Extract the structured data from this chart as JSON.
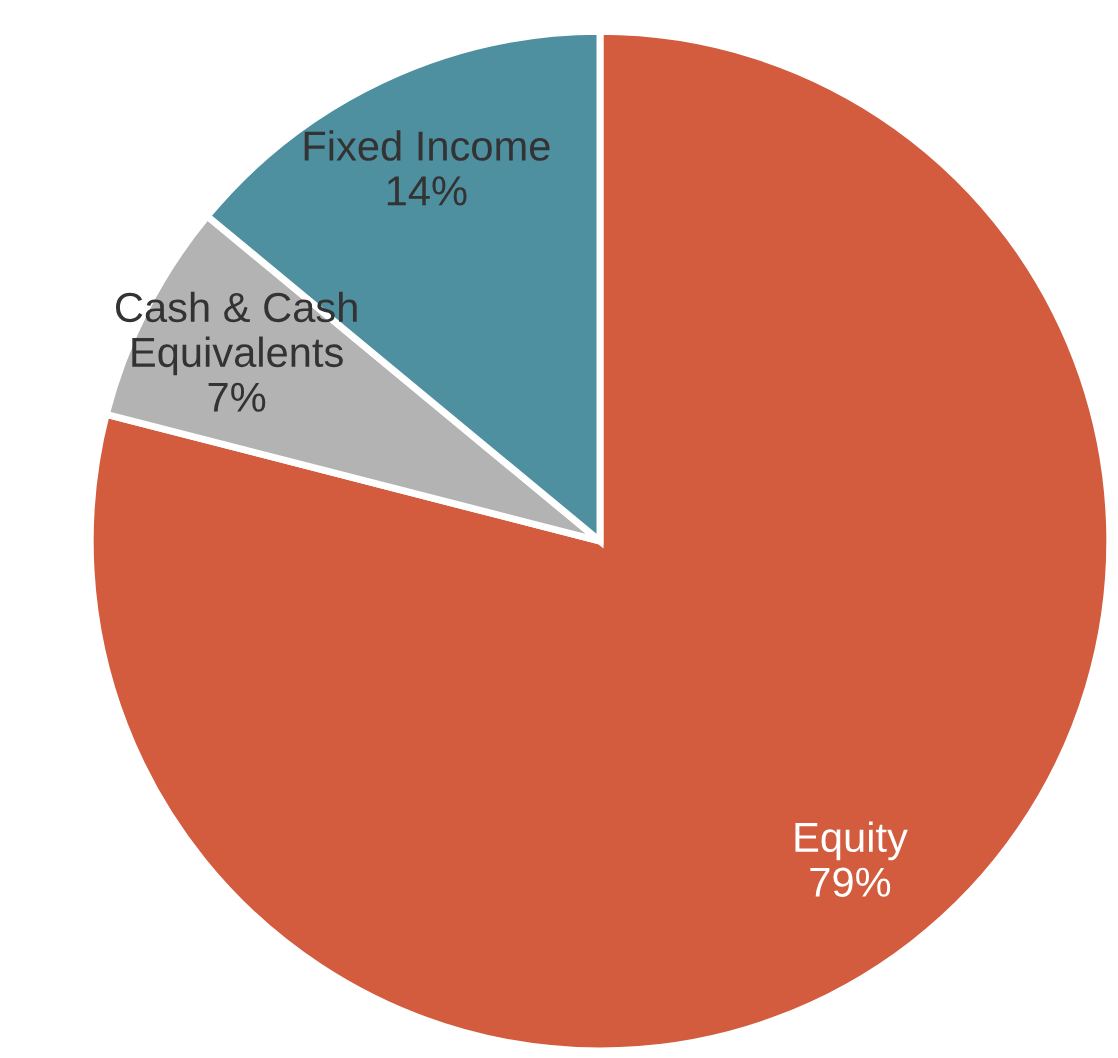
{
  "chart_data": {
    "type": "pie",
    "categories": [
      "Equity",
      "Cash & Cash\nEquivalents",
      "Fixed Income"
    ],
    "values": [
      79,
      7,
      14
    ],
    "colors": [
      "#d35b3e",
      "#b3b3b3",
      "#4e8fa0"
    ],
    "value_labels": [
      "79%",
      "7%",
      "14%"
    ]
  }
}
